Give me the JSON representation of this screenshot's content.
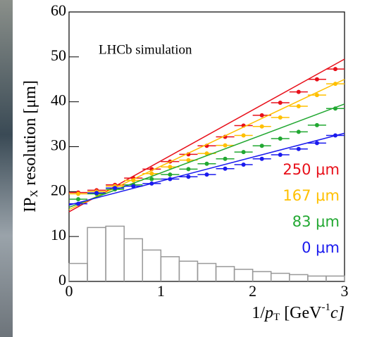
{
  "chart_data": {
    "type": "scatter",
    "annotation": "LHCb simulation",
    "ylabel": [
      "IP",
      "X",
      " resolution [μm]"
    ],
    "xlabel": [
      "1/",
      "p",
      "T",
      " [GeV",
      "-1",
      "c]"
    ],
    "xlim": [
      0,
      3
    ],
    "xticks": [
      0,
      1,
      2,
      3
    ],
    "ylim": [
      0,
      60
    ],
    "yticks": [
      0,
      10,
      20,
      30,
      40,
      50,
      60
    ],
    "x": [
      0.1,
      0.3,
      0.5,
      0.7,
      0.9,
      1.1,
      1.3,
      1.5,
      1.7,
      1.9,
      2.1,
      2.3,
      2.5,
      2.7,
      2.9
    ],
    "xerr": 0.1,
    "fit_x": [
      0,
      3
    ],
    "series": [
      {
        "name": "250 μm",
        "color": "#e8101a",
        "values": [
          19.8,
          20.3,
          21.5,
          23.0,
          25.0,
          26.7,
          28.3,
          30.2,
          32.2,
          34.7,
          37.0,
          39.8,
          42.2,
          45.0,
          47.3
        ],
        "fit": [
          15.5,
          49.5
        ]
      },
      {
        "name": "167 μm",
        "color": "#ffc000",
        "values": [
          19.5,
          20.0,
          21.2,
          22.5,
          24.0,
          25.5,
          27.0,
          28.5,
          30.3,
          32.5,
          34.5,
          36.5,
          39.0,
          41.5,
          44.0
        ],
        "fit": [
          16.0,
          45.0
        ]
      },
      {
        "name": "83 μm",
        "color": "#22a832",
        "values": [
          18.3,
          19.5,
          20.5,
          21.5,
          22.8,
          23.8,
          25.0,
          26.2,
          27.3,
          28.8,
          30.2,
          31.8,
          33.3,
          34.8,
          38.5
        ],
        "fit": [
          16.5,
          39.5
        ]
      },
      {
        "name": "0 μm",
        "color": "#1a1aee",
        "values": [
          17.3,
          19.7,
          20.8,
          21.2,
          21.8,
          22.8,
          23.3,
          23.8,
          25.1,
          26.0,
          27.3,
          28.2,
          29.5,
          30.8,
          32.5
        ],
        "fit": [
          17.0,
          33.0
        ]
      }
    ],
    "histogram": {
      "color": "#999999",
      "bins": [
        0,
        0.2,
        0.4,
        0.6,
        0.8,
        1.0,
        1.2,
        1.4,
        1.6,
        1.8,
        2.0,
        2.2,
        2.4,
        2.6,
        2.8,
        3.0
      ],
      "counts": [
        4,
        12,
        12.3,
        9.5,
        7,
        5.5,
        4.5,
        4,
        3.3,
        2.7,
        2.2,
        1.8,
        1.5,
        1.2,
        1.2
      ]
    }
  }
}
